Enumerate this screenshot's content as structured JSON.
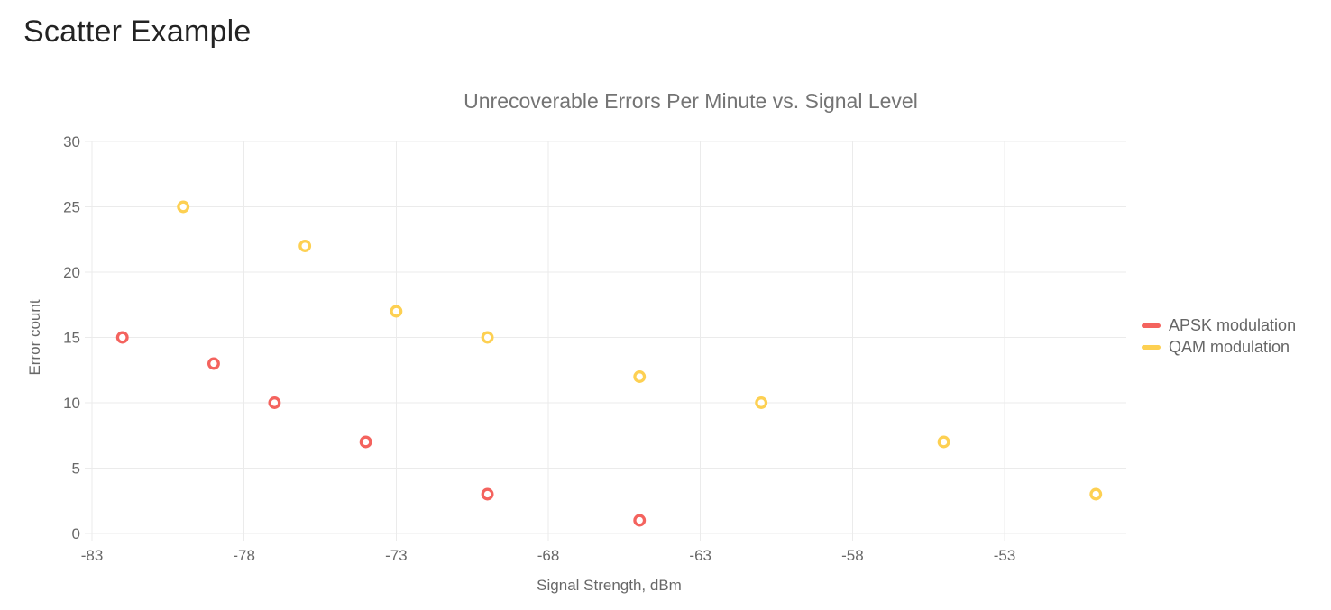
{
  "page": {
    "title": "Scatter Example"
  },
  "chart_data": {
    "type": "scatter",
    "title": "Unrecoverable Errors Per Minute vs. Signal Level",
    "xlabel": "Signal Strength, dBm",
    "ylabel": "Error count",
    "xlim": [
      -83,
      -49
    ],
    "ylim": [
      0,
      30
    ],
    "xticks": [
      -83,
      -78,
      -73,
      -68,
      -63,
      -58,
      -53
    ],
    "yticks": [
      0,
      5,
      10,
      15,
      20,
      25,
      30
    ],
    "grid": true,
    "legend_position": "right-center",
    "marker_style": "open-circle",
    "series": [
      {
        "name": "APSK modulation",
        "color": "#f4635e",
        "points": [
          [
            -82,
            15
          ],
          [
            -79,
            13
          ],
          [
            -77,
            10
          ],
          [
            -74,
            7
          ],
          [
            -70,
            3
          ],
          [
            -65,
            1
          ]
        ]
      },
      {
        "name": "QAM modulation",
        "color": "#fdd052",
        "points": [
          [
            -80,
            25
          ],
          [
            -76,
            22
          ],
          [
            -73,
            17
          ],
          [
            -70,
            15
          ],
          [
            -65,
            12
          ],
          [
            -61,
            10
          ],
          [
            -55,
            7
          ],
          [
            -50,
            3
          ]
        ]
      }
    ]
  }
}
